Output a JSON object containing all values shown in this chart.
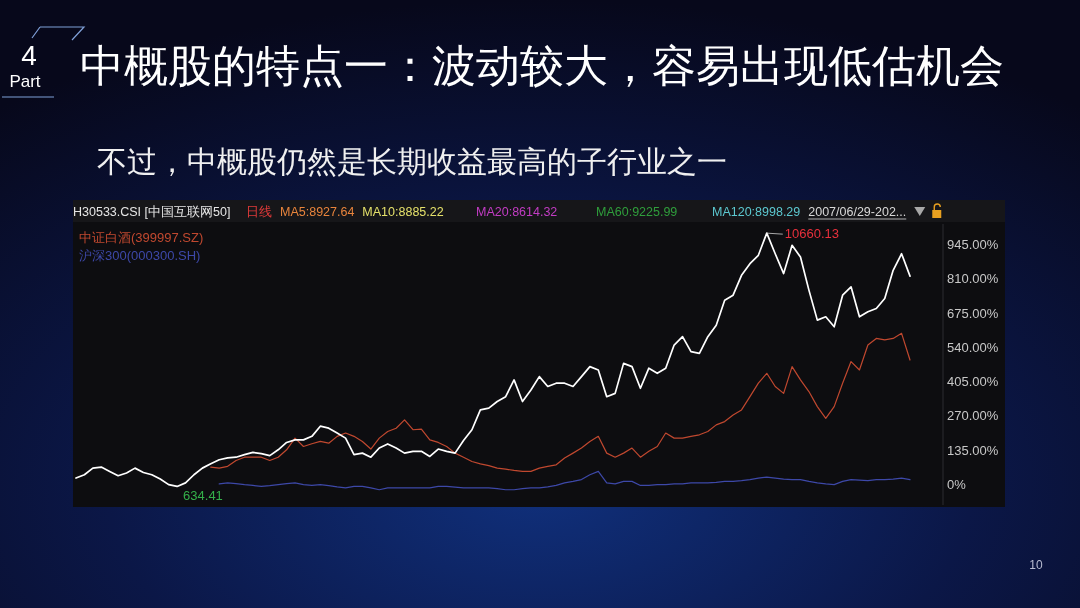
{
  "chart_data": {
    "type": "line",
    "title": "中概股的特点一：波动较大，容易出现低估机会",
    "subtitle": "不过，中概股仍然是长期收益最高的子行业之一",
    "categories": [
      null,
      null,
      null,
      null,
      null,
      null,
      null,
      null,
      null,
      null,
      null,
      null,
      null,
      null,
      null,
      null,
      null,
      null,
      null,
      null,
      null,
      null,
      null,
      null,
      null,
      null,
      null,
      null,
      null,
      null,
      null,
      null,
      null,
      null,
      null,
      null,
      null,
      null,
      null,
      null,
      null,
      null,
      null,
      null,
      null,
      null,
      null,
      null,
      null,
      null,
      null,
      null,
      null,
      null,
      null,
      null,
      null,
      null,
      null,
      null,
      null,
      null,
      null,
      null,
      null,
      null,
      null,
      null,
      null,
      null,
      null,
      null,
      null,
      null,
      null,
      null,
      null,
      null,
      null,
      null,
      null,
      null,
      null,
      null,
      null,
      null,
      null,
      null,
      null,
      null,
      null,
      null,
      null,
      null,
      null,
      null,
      null,
      null,
      null,
      null
    ],
    "series": [
      {
        "color": "#ffffff",
        "values": [
          26,
          39,
          65,
          69,
          52,
          35,
          46,
          65,
          48,
          39,
          22,
          0,
          -7,
          7,
          39,
          65,
          82,
          98,
          105,
          108,
          118,
          127,
          122,
          114,
          137,
          166,
          176,
          176,
          190,
          230,
          222,
          203,
          183,
          118,
          124,
          108,
          144,
          160,
          144,
          124,
          131,
          131,
          111,
          140,
          131,
          124,
          174,
          216,
          294,
          301,
          327,
          346,
          412,
          327,
          372,
          425,
          386,
          399,
          399,
          386,
          425,
          464,
          451,
          346,
          359,
          477,
          464,
          379,
          458,
          438,
          458,
          549,
          582,
          523,
          516,
          582,
          627,
          725,
          745,
          823,
          869,
          902,
          989,
          908,
          830,
          941,
          895,
          765,
          647,
          660,
          621,
          745,
          778,
          660,
          680,
          693,
          732,
          843,
          908,
          820
        ]
      },
      {
        "name": "中证白酒(399997.SZ)",
        "color": "#c0482f",
        "values": [
          null,
          null,
          null,
          null,
          null,
          null,
          null,
          null,
          null,
          null,
          null,
          null,
          null,
          null,
          null,
          null,
          69,
          65,
          72,
          95,
          108,
          108,
          108,
          95,
          108,
          137,
          183,
          150,
          161,
          170,
          163,
          190,
          203,
          190,
          170,
          140,
          183,
          209,
          222,
          255,
          216,
          218,
          176,
          166,
          150,
          124,
          108,
          91,
          82,
          75,
          65,
          61,
          56,
          52,
          52,
          65,
          72,
          78,
          105,
          124,
          144,
          170,
          190,
          124,
          108,
          124,
          144,
          108,
          131,
          150,
          203,
          183,
          183,
          190,
          196,
          209,
          235,
          248,
          274,
          294,
          346,
          399,
          438,
          386,
          359,
          464,
          412,
          366,
          307,
          261,
          307,
          399,
          484,
          451,
          549,
          575,
          569,
          575,
          595,
          490
        ]
      },
      {
        "name": "沪深300(000300.SH)",
        "color": "#3d48a8",
        "values": [
          null,
          null,
          null,
          null,
          null,
          null,
          null,
          null,
          null,
          null,
          null,
          null,
          null,
          null,
          null,
          null,
          null,
          3,
          7,
          4,
          0,
          -3,
          -7,
          -4,
          0,
          4,
          7,
          0,
          -3,
          0,
          -4,
          -9,
          -13,
          -7,
          -7,
          -13,
          -20,
          -13,
          -13,
          -13,
          -13,
          -13,
          -13,
          -7,
          -7,
          -10,
          -13,
          -13,
          -13,
          -13,
          -16,
          -20,
          -20,
          -16,
          -13,
          -13,
          -9,
          -3,
          7,
          13,
          20,
          39,
          52,
          7,
          3,
          13,
          13,
          -3,
          -3,
          0,
          0,
          3,
          3,
          7,
          7,
          7,
          9,
          13,
          13,
          16,
          20,
          26,
          30,
          26,
          22,
          20,
          20,
          13,
          7,
          3,
          0,
          13,
          20,
          18,
          16,
          20,
          20,
          22,
          26,
          20
        ]
      }
    ],
    "ylim": [
      -80,
      1025
    ],
    "yticks": [
      {
        "value": 0,
        "label": "0%"
      },
      {
        "value": 135,
        "label": "135.00%"
      },
      {
        "value": 270,
        "label": "270.00%"
      },
      {
        "value": 405,
        "label": "405.00%"
      },
      {
        "value": 540,
        "label": "540.00%"
      },
      {
        "value": 675,
        "label": "675.00%"
      },
      {
        "value": 810,
        "label": "810.00%"
      },
      {
        "value": 945,
        "label": "945.00%"
      }
    ],
    "tick_labels": "y",
    "legend": "top left",
    "annotations": [
      "4",
      "Part",
      "H30533.CSI [中国互联网50]",
      "日线",
      "MA5:8927.64",
      "MA10:8885.22",
      "MA20:8614.32",
      "MA60:9225.99",
      "MA120:8998.29",
      "2007/06/29-202...",
      "10660.13",
      "634.41",
      "10"
    ]
  }
}
